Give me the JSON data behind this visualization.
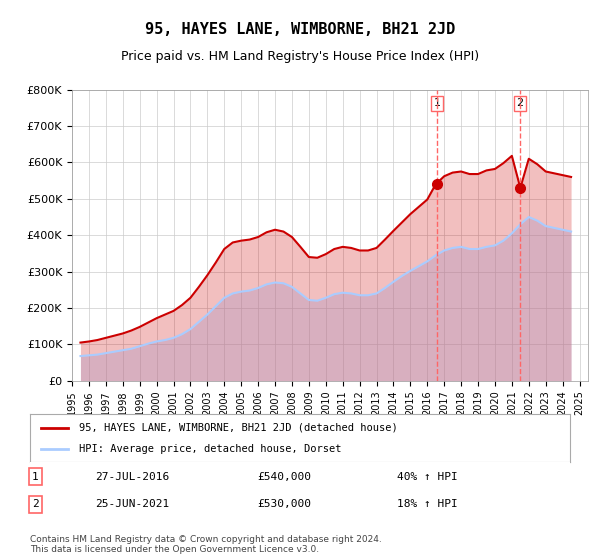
{
  "title": "95, HAYES LANE, WIMBORNE, BH21 2JD",
  "subtitle": "Price paid vs. HM Land Registry's House Price Index (HPI)",
  "xlabel": "",
  "ylabel": "",
  "ylim": [
    0,
    800000
  ],
  "yticks": [
    0,
    100000,
    200000,
    300000,
    400000,
    500000,
    600000,
    700000,
    800000
  ],
  "ytick_labels": [
    "£0",
    "£100K",
    "£200K",
    "£300K",
    "£400K",
    "£500K",
    "£600K",
    "£700K",
    "£800K"
  ],
  "background_color": "#ffffff",
  "grid_color": "#cccccc",
  "hpi_color": "#aaccff",
  "sale_color": "#cc0000",
  "dashed_line_color": "#ff6666",
  "title_fontsize": 11,
  "subtitle_fontsize": 9,
  "legend_label_sale": "95, HAYES LANE, WIMBORNE, BH21 2JD (detached house)",
  "legend_label_hpi": "HPI: Average price, detached house, Dorset",
  "transaction1_label": "1",
  "transaction1_date": "27-JUL-2016",
  "transaction1_price": "£540,000",
  "transaction1_hpi": "40% ↑ HPI",
  "transaction1_year": 2016.57,
  "transaction1_value": 540000,
  "transaction2_label": "2",
  "transaction2_date": "25-JUN-2021",
  "transaction2_price": "£530,000",
  "transaction2_hpi": "18% ↑ HPI",
  "transaction2_year": 2021.48,
  "transaction2_value": 530000,
  "footer": "Contains HM Land Registry data © Crown copyright and database right 2024.\nThis data is licensed under the Open Government Licence v3.0.",
  "hpi_data_x": [
    1995.5,
    1996.0,
    1996.5,
    1997.0,
    1997.5,
    1998.0,
    1998.5,
    1999.0,
    1999.5,
    2000.0,
    2000.5,
    2001.0,
    2001.5,
    2002.0,
    2002.5,
    2003.0,
    2003.5,
    2004.0,
    2004.5,
    2005.0,
    2005.5,
    2006.0,
    2006.5,
    2007.0,
    2007.5,
    2008.0,
    2008.5,
    2009.0,
    2009.5,
    2010.0,
    2010.5,
    2011.0,
    2011.5,
    2012.0,
    2012.5,
    2013.0,
    2013.5,
    2014.0,
    2014.5,
    2015.0,
    2015.5,
    2016.0,
    2016.5,
    2017.0,
    2017.5,
    2018.0,
    2018.5,
    2019.0,
    2019.5,
    2020.0,
    2020.5,
    2021.0,
    2021.5,
    2022.0,
    2022.5,
    2023.0,
    2023.5,
    2024.0,
    2024.5
  ],
  "hpi_data_y": [
    68000,
    70000,
    72000,
    76000,
    80000,
    84000,
    88000,
    95000,
    102000,
    108000,
    112000,
    118000,
    128000,
    142000,
    162000,
    182000,
    205000,
    228000,
    240000,
    245000,
    248000,
    255000,
    265000,
    270000,
    268000,
    258000,
    240000,
    222000,
    220000,
    228000,
    238000,
    242000,
    240000,
    235000,
    235000,
    240000,
    255000,
    272000,
    288000,
    302000,
    315000,
    328000,
    345000,
    358000,
    365000,
    368000,
    362000,
    362000,
    368000,
    372000,
    385000,
    405000,
    430000,
    450000,
    440000,
    425000,
    420000,
    415000,
    410000
  ],
  "sale_data_x": [
    1995.5,
    1996.0,
    1996.5,
    1997.0,
    1997.5,
    1998.0,
    1998.5,
    1999.0,
    1999.5,
    2000.0,
    2000.5,
    2001.0,
    2001.5,
    2002.0,
    2002.5,
    2003.0,
    2003.5,
    2004.0,
    2004.5,
    2005.0,
    2005.5,
    2006.0,
    2006.5,
    2007.0,
    2007.5,
    2008.0,
    2008.5,
    2009.0,
    2009.5,
    2010.0,
    2010.5,
    2011.0,
    2011.5,
    2012.0,
    2012.5,
    2013.0,
    2013.5,
    2014.0,
    2014.5,
    2015.0,
    2015.5,
    2016.0,
    2016.5,
    2017.0,
    2017.5,
    2018.0,
    2018.5,
    2019.0,
    2019.5,
    2020.0,
    2020.5,
    2021.0,
    2021.5,
    2022.0,
    2022.5,
    2023.0,
    2023.5,
    2024.0,
    2024.5
  ],
  "sale_data_y": [
    105000,
    108000,
    112000,
    118000,
    124000,
    130000,
    138000,
    148000,
    160000,
    172000,
    182000,
    192000,
    208000,
    228000,
    258000,
    290000,
    325000,
    362000,
    380000,
    385000,
    388000,
    395000,
    408000,
    415000,
    410000,
    395000,
    368000,
    340000,
    338000,
    348000,
    362000,
    368000,
    365000,
    358000,
    358000,
    365000,
    388000,
    412000,
    435000,
    458000,
    478000,
    498000,
    540000,
    562000,
    572000,
    575000,
    568000,
    568000,
    578000,
    582000,
    598000,
    618000,
    530000,
    610000,
    595000,
    575000,
    570000,
    565000,
    560000
  ]
}
